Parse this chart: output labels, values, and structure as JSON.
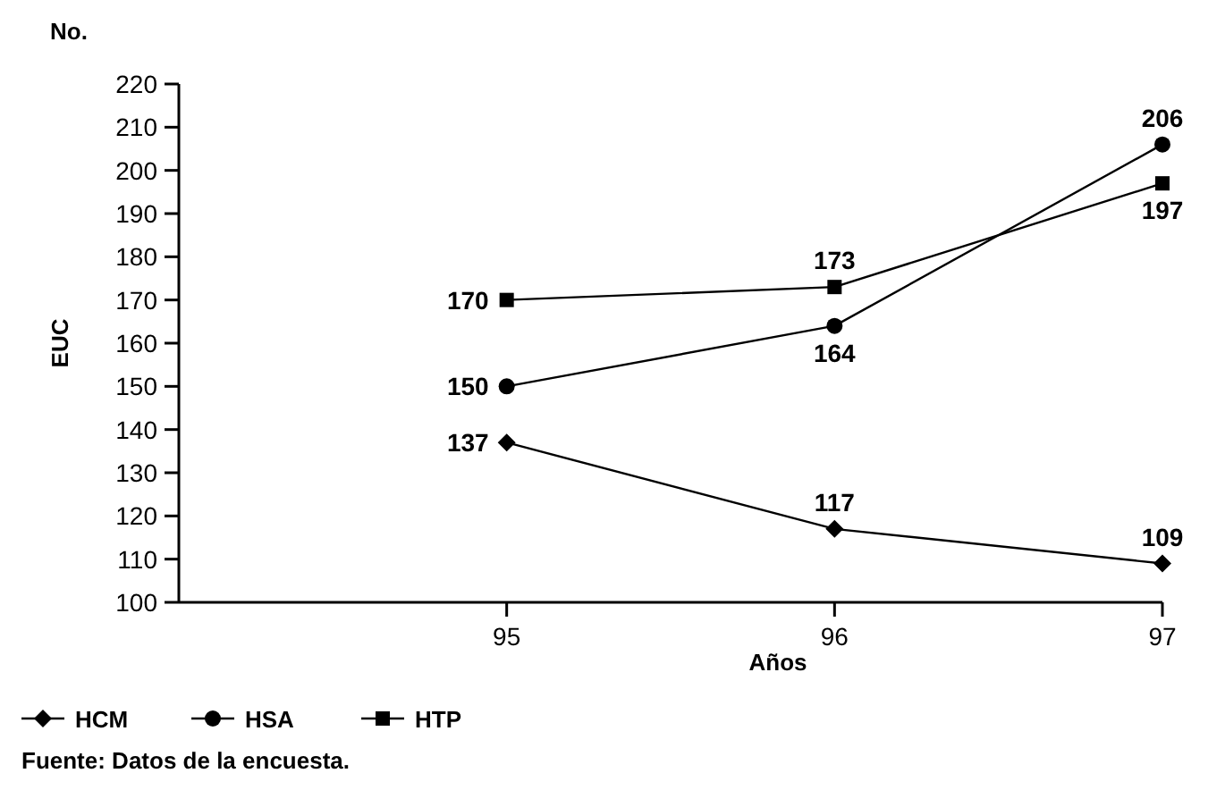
{
  "chart_data": {
    "type": "line",
    "ylabel": "EUC",
    "xlabel": "Años",
    "x": [
      95,
      96,
      97
    ],
    "xlim": [
      94,
      97
    ],
    "xticks": [
      95,
      96,
      97
    ],
    "ylim": [
      100,
      220
    ],
    "yticks": [
      100,
      110,
      120,
      130,
      140,
      150,
      160,
      170,
      180,
      190,
      200,
      210,
      220
    ],
    "series": [
      {
        "name": "HCM",
        "color": "#000000",
        "marker": "diamond",
        "values": [
          137,
          117,
          109
        ]
      },
      {
        "name": "HSA",
        "color": "#000000",
        "marker": "circle",
        "values": [
          150,
          164,
          206
        ]
      },
      {
        "name": "HTP",
        "color": "#000000",
        "marker": "square",
        "values": [
          170,
          173,
          197
        ]
      }
    ],
    "data_labels": true,
    "legend": "bottom",
    "grid": false,
    "line_style": "solid",
    "annotations": [
      "No.",
      "Fuente: Datos de la encuesta."
    ]
  }
}
